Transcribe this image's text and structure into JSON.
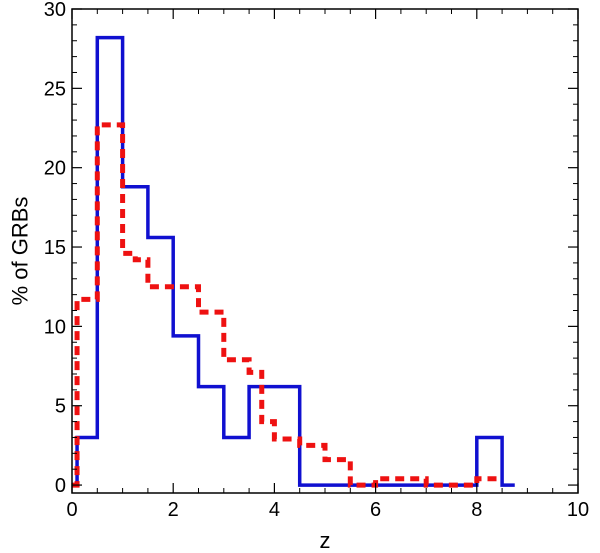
{
  "chart_data": {
    "type": "line",
    "title": "",
    "xlabel": "z",
    "ylabel": "% of GRBs",
    "xlim": [
      0,
      10
    ],
    "ylim": [
      -0.5,
      30
    ],
    "x_ticks": [
      "0",
      "2",
      "4",
      "6",
      "8",
      "10"
    ],
    "y_ticks": [
      "0",
      "5",
      "10",
      "15",
      "20",
      "25",
      "30"
    ],
    "grid": false,
    "legend": "none",
    "series": [
      {
        "style": "solid",
        "color": "#1010d0",
        "bin_edges": [
          0.0,
          0.1,
          0.5,
          1.0,
          1.5,
          2.0,
          2.5,
          3.0,
          3.5,
          4.0,
          4.5,
          5.0,
          5.5,
          6.0,
          6.5,
          7.0,
          7.5,
          8.0,
          8.5,
          8.75
        ],
        "values": [
          0,
          3,
          28.2,
          18.8,
          15.6,
          9.4,
          6.2,
          3.0,
          6.2,
          6.2,
          0,
          0,
          0,
          0,
          0,
          0,
          0,
          3.0,
          0
        ]
      },
      {
        "style": "dashed",
        "color": "#ee1111",
        "bin_edges": [
          0.0,
          0.1,
          0.5,
          1.0,
          1.25,
          1.5,
          2.0,
          2.5,
          3.0,
          3.5,
          3.75,
          4.0,
          4.5,
          5.0,
          5.5,
          6.0,
          6.5,
          7.0,
          7.5,
          8.0,
          8.5
        ],
        "values": [
          0,
          11.7,
          22.7,
          14.6,
          14.2,
          12.5,
          12.5,
          10.9,
          7.9,
          7.1,
          4.0,
          2.9,
          2.5,
          1.6,
          0,
          0.4,
          0.4,
          0,
          0,
          0.4
        ]
      }
    ]
  }
}
